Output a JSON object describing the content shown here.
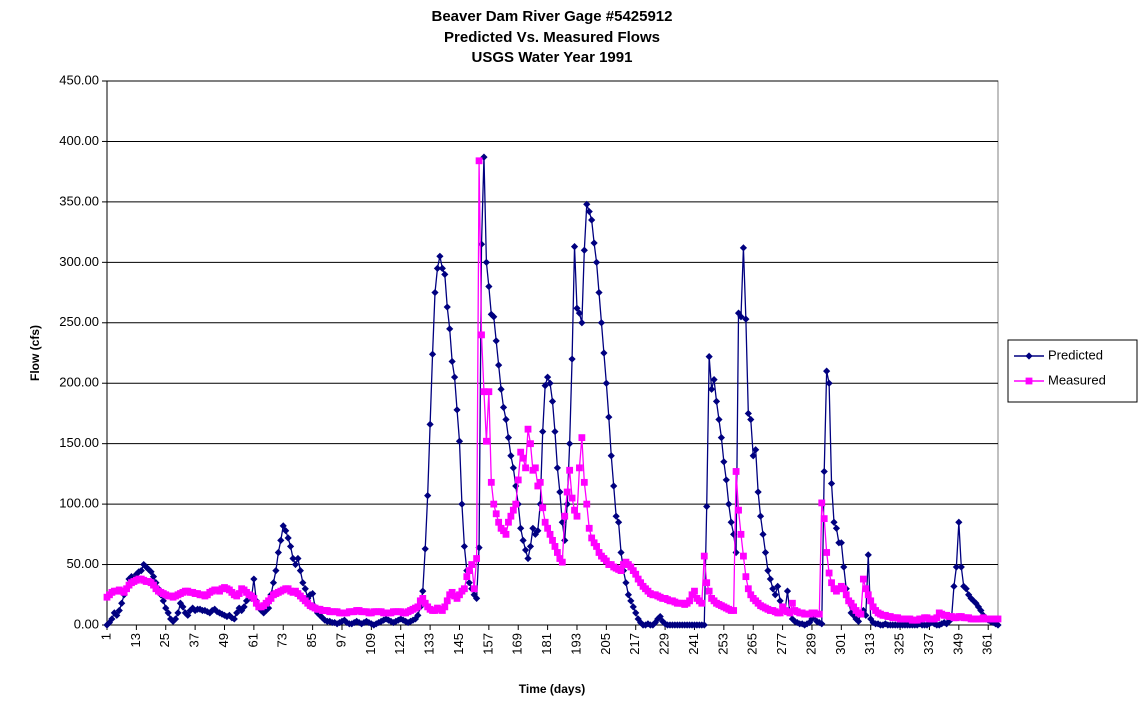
{
  "chart_data": {
    "type": "line",
    "title": [
      "Beaver Dam River Gage #5425912",
      "Predicted Vs. Measured Flows",
      "USGS Water Year 1991"
    ],
    "xlabel": "Time (days)",
    "ylabel": "Flow (cfs)",
    "legend": "right",
    "grid": true,
    "xlim": [
      1,
      365
    ],
    "xticks": [
      1,
      13,
      25,
      37,
      49,
      61,
      73,
      85,
      97,
      109,
      121,
      133,
      145,
      157,
      169,
      181,
      193,
      205,
      217,
      229,
      241,
      253,
      265,
      277,
      289,
      301,
      313,
      325,
      337,
      349,
      361
    ],
    "ylim": [
      0,
      450
    ],
    "yticks": [
      {
        "value": 0,
        "label": "0.00"
      },
      {
        "value": 50,
        "label": "50.00"
      },
      {
        "value": 100,
        "label": "100.00"
      },
      {
        "value": 150,
        "label": "150.00"
      },
      {
        "value": 200,
        "label": "200.00"
      },
      {
        "value": 250,
        "label": "250.00"
      },
      {
        "value": 300,
        "label": "300.00"
      },
      {
        "value": 350,
        "label": "350.00"
      },
      {
        "value": 400,
        "label": "400.00"
      },
      {
        "value": 450,
        "label": "450.00"
      }
    ],
    "x": [
      1,
      2,
      3,
      4,
      5,
      6,
      7,
      8,
      9,
      10,
      11,
      12,
      13,
      14,
      15,
      16,
      17,
      18,
      19,
      20,
      21,
      22,
      23,
      24,
      25,
      26,
      27,
      28,
      29,
      30,
      31,
      32,
      33,
      34,
      35,
      36,
      37,
      38,
      39,
      40,
      41,
      42,
      43,
      44,
      45,
      46,
      47,
      48,
      49,
      50,
      51,
      52,
      53,
      54,
      55,
      56,
      57,
      58,
      59,
      60,
      61,
      62,
      63,
      64,
      65,
      66,
      67,
      68,
      69,
      70,
      71,
      72,
      73,
      74,
      75,
      76,
      77,
      78,
      79,
      80,
      81,
      82,
      83,
      84,
      85,
      86,
      87,
      88,
      89,
      90,
      91,
      92,
      93,
      94,
      95,
      96,
      97,
      98,
      99,
      100,
      101,
      102,
      103,
      104,
      105,
      106,
      107,
      108,
      109,
      110,
      111,
      112,
      113,
      114,
      115,
      116,
      117,
      118,
      119,
      120,
      121,
      122,
      123,
      124,
      125,
      126,
      127,
      128,
      129,
      130,
      131,
      132,
      133,
      134,
      135,
      136,
      137,
      138,
      139,
      140,
      141,
      142,
      143,
      144,
      145,
      146,
      147,
      148,
      149,
      150,
      151,
      152,
      153,
      154,
      155,
      156,
      157,
      158,
      159,
      160,
      161,
      162,
      163,
      164,
      165,
      166,
      167,
      168,
      169,
      170,
      171,
      172,
      173,
      174,
      175,
      176,
      177,
      178,
      179,
      180,
      181,
      182,
      183,
      184,
      185,
      186,
      187,
      188,
      189,
      190,
      191,
      192,
      193,
      194,
      195,
      196,
      197,
      198,
      199,
      200,
      201,
      202,
      203,
      204,
      205,
      206,
      207,
      208,
      209,
      210,
      211,
      212,
      213,
      214,
      215,
      216,
      217,
      218,
      219,
      220,
      221,
      222,
      223,
      224,
      225,
      226,
      227,
      228,
      229,
      230,
      231,
      232,
      233,
      234,
      235,
      236,
      237,
      238,
      239,
      240,
      241,
      242,
      243,
      244,
      245,
      246,
      247,
      248,
      249,
      250,
      251,
      252,
      253,
      254,
      255,
      256,
      257,
      258,
      259,
      260,
      261,
      262,
      263,
      264,
      265,
      266,
      267,
      268,
      269,
      270,
      271,
      272,
      273,
      274,
      275,
      276,
      277,
      278,
      279,
      280,
      281,
      282,
      283,
      284,
      285,
      286,
      287,
      288,
      289,
      290,
      291,
      292,
      293,
      294,
      295,
      296,
      297,
      298,
      299,
      300,
      301,
      302,
      303,
      304,
      305,
      306,
      307,
      308,
      309,
      310,
      311,
      312,
      313,
      314,
      315,
      316,
      317,
      318,
      319,
      320,
      321,
      322,
      323,
      324,
      325,
      326,
      327,
      328,
      329,
      330,
      331,
      332,
      333,
      334,
      335,
      336,
      337,
      338,
      339,
      340,
      341,
      342,
      343,
      344,
      345,
      346,
      347,
      348,
      349,
      350,
      351,
      352,
      353,
      354,
      355,
      356,
      357,
      358,
      359,
      360,
      361,
      362,
      363,
      364,
      365
    ],
    "series": [
      {
        "name": "Predicted",
        "color": "#000080",
        "marker": "diamond",
        "values": [
          0,
          2,
          5,
          10,
          8,
          12,
          18,
          25,
          30,
          38,
          40,
          36,
          42,
          44,
          45,
          50,
          48,
          46,
          44,
          40,
          35,
          30,
          25,
          20,
          14,
          10,
          5,
          3,
          5,
          10,
          18,
          15,
          10,
          8,
          12,
          14,
          12,
          13,
          13,
          12,
          12,
          11,
          10,
          12,
          13,
          11,
          10,
          9,
          8,
          7,
          8,
          6,
          5,
          10,
          14,
          12,
          15,
          20,
          25,
          22,
          38,
          20,
          15,
          12,
          10,
          12,
          14,
          25,
          35,
          45,
          60,
          70,
          82,
          78,
          72,
          65,
          55,
          50,
          55,
          45,
          35,
          30,
          22,
          25,
          26,
          15,
          10,
          8,
          6,
          4,
          3,
          3,
          2,
          2,
          1,
          2,
          3,
          4,
          2,
          1,
          1,
          2,
          3,
          2,
          1,
          2,
          3,
          2,
          1,
          0,
          1,
          2,
          3,
          4,
          5,
          4,
          3,
          2,
          3,
          4,
          5,
          4,
          3,
          2,
          3,
          4,
          5,
          8,
          15,
          28,
          63,
          107,
          166,
          224,
          275,
          295,
          305,
          295,
          290,
          263,
          245,
          218,
          205,
          178,
          152,
          100,
          65,
          45,
          35,
          30,
          25,
          22,
          64,
          315,
          387,
          300,
          280,
          257,
          255,
          235,
          215,
          195,
          180,
          170,
          155,
          140,
          130,
          115,
          100,
          80,
          70,
          62,
          55,
          65,
          80,
          75,
          78,
          100,
          160,
          198,
          205,
          200,
          185,
          160,
          130,
          110,
          85,
          70,
          100,
          150,
          220,
          313,
          262,
          258,
          250,
          310,
          348,
          342,
          335,
          316,
          300,
          275,
          250,
          225,
          200,
          172,
          140,
          115,
          90,
          85,
          60,
          45,
          35,
          25,
          20,
          15,
          10,
          5,
          2,
          0,
          0,
          1,
          0,
          0,
          2,
          5,
          7,
          3,
          1,
          0,
          0,
          0,
          0,
          0,
          0,
          0,
          0,
          0,
          0,
          0,
          0,
          0,
          0,
          0,
          0,
          98,
          222,
          195,
          203,
          185,
          170,
          155,
          135,
          120,
          100,
          85,
          75,
          60,
          258,
          255,
          312,
          253,
          175,
          170,
          140,
          145,
          110,
          90,
          75,
          60,
          45,
          38,
          30,
          25,
          32,
          20,
          15,
          12,
          28,
          10,
          5,
          3,
          2,
          1,
          1,
          0,
          1,
          2,
          5,
          8,
          3,
          2,
          1,
          127,
          210,
          200,
          117,
          85,
          80,
          68,
          68,
          48,
          30,
          20,
          10,
          8,
          5,
          3,
          10,
          12,
          8,
          58,
          5,
          2,
          1,
          1,
          0,
          0,
          1,
          0,
          0,
          0,
          0,
          0,
          0,
          0,
          0,
          0,
          0,
          0,
          0,
          0,
          1,
          0,
          0,
          0,
          1,
          2,
          1,
          0,
          0,
          1,
          2,
          1,
          3,
          5,
          32,
          48,
          85,
          48,
          32,
          30,
          25,
          22,
          20,
          18,
          15,
          12,
          8,
          5,
          4,
          3,
          2,
          1,
          0
        ]
      },
      {
        "name": "Measured",
        "color": "#FF00FF",
        "marker": "square",
        "values": [
          23,
          25,
          27,
          28,
          28,
          29,
          28,
          27,
          30,
          33,
          35,
          36,
          37,
          38,
          38,
          37,
          36,
          36,
          35,
          33,
          30,
          28,
          27,
          26,
          25,
          24,
          24,
          23,
          24,
          25,
          26,
          27,
          28,
          28,
          27,
          27,
          26,
          26,
          25,
          25,
          24,
          25,
          27,
          28,
          29,
          29,
          28,
          30,
          31,
          30,
          29,
          27,
          25,
          24,
          26,
          30,
          29,
          27,
          25,
          24,
          22,
          18,
          15,
          15,
          16,
          18,
          20,
          22,
          25,
          26,
          27,
          28,
          29,
          30,
          30,
          28,
          27,
          28,
          26,
          24,
          22,
          20,
          18,
          16,
          15,
          14,
          13,
          13,
          12,
          12,
          12,
          11,
          11,
          11,
          11,
          10,
          10,
          10,
          10,
          11,
          11,
          11,
          12,
          12,
          11,
          11,
          11,
          10,
          10,
          11,
          11,
          11,
          11,
          10,
          10,
          10,
          10,
          11,
          11,
          11,
          11,
          10,
          10,
          11,
          12,
          13,
          14,
          15,
          20,
          22,
          18,
          15,
          13,
          12,
          12,
          14,
          13,
          12,
          15,
          20,
          25,
          27,
          24,
          22,
          25,
          28,
          30,
          40,
          45,
          50,
          30,
          55,
          384,
          240,
          193,
          152,
          193,
          118,
          100,
          92,
          85,
          80,
          78,
          75,
          85,
          90,
          95,
          100,
          120,
          143,
          138,
          130,
          162,
          150,
          128,
          130,
          115,
          118,
          97,
          85,
          80,
          75,
          70,
          65,
          60,
          55,
          52,
          90,
          110,
          128,
          105,
          95,
          90,
          130,
          155,
          118,
          100,
          80,
          72,
          68,
          65,
          60,
          57,
          55,
          53,
          50,
          50,
          48,
          47,
          46,
          45,
          50,
          52,
          50,
          48,
          45,
          42,
          38,
          35,
          32,
          30,
          28,
          26,
          25,
          25,
          24,
          23,
          22,
          22,
          21,
          20,
          20,
          19,
          18,
          18,
          18,
          17,
          18,
          20,
          25,
          28,
          22,
          20,
          18,
          57,
          35,
          28,
          22,
          20,
          18,
          17,
          16,
          15,
          14,
          13,
          12,
          12,
          127,
          95,
          75,
          57,
          40,
          30,
          25,
          22,
          20,
          18,
          16,
          15,
          14,
          13,
          12,
          12,
          11,
          10,
          10,
          15,
          12,
          11,
          10,
          18,
          12,
          11,
          10,
          10,
          9,
          9,
          9,
          10,
          10,
          9,
          9,
          101,
          88,
          60,
          43,
          35,
          30,
          28,
          30,
          32,
          30,
          25,
          20,
          18,
          15,
          12,
          10,
          9,
          38,
          30,
          25,
          20,
          15,
          12,
          10,
          9,
          8,
          8,
          7,
          7,
          6,
          6,
          6,
          5,
          5,
          5,
          5,
          5,
          4,
          4,
          4,
          5,
          5,
          6,
          6,
          5,
          5,
          5,
          6,
          10,
          9,
          8,
          8,
          7,
          7,
          6,
          6,
          7,
          7,
          6,
          6,
          6,
          5,
          5,
          5,
          5,
          5,
          6,
          5,
          5,
          5,
          5,
          5,
          5
        ]
      }
    ]
  }
}
